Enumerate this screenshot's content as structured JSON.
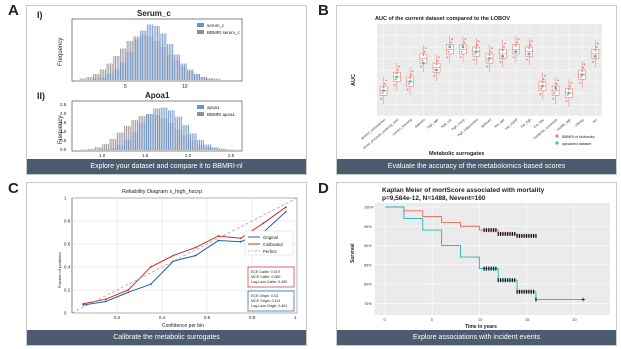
{
  "panels": {
    "A": {
      "letter": "A",
      "caption": "Explore your dataset and compare it to BBMRI-nl",
      "sub1": {
        "label": "I)",
        "title": "Serum_c",
        "ylabel": "Frequency",
        "legend": [
          "serum_c",
          "BBMRI serum_c"
        ],
        "xticks": [
          "5",
          "10"
        ]
      },
      "sub2": {
        "label": "II)",
        "title": "Apoa1",
        "ylabel": "Frequency",
        "legend": [
          "apoa1",
          "BBMRI apoa1"
        ],
        "yticks": [
          "2.5",
          "2.0",
          "1.5",
          "1.0",
          "0.5",
          "0.0"
        ],
        "xticks": [
          "1.0",
          "1.5",
          "2.0",
          "2.5"
        ]
      },
      "colors": {
        "dataset": "#6f93c8",
        "bbmri": "#8f8f8f"
      }
    },
    "B": {
      "letter": "B",
      "caption": "Evaluate the accuracy of the metabolomics-based scores",
      "title": "AUC of the current dataset compared to the LOBOV",
      "ylabel": "AUC",
      "xlabel": "Metabolic surrogates",
      "legend": [
        "BBMRI-nl biobanks",
        "uploaded dataset"
      ],
      "categories": [
        "alcohol_consumption",
        "blood_pressure_lowering_med",
        "current_smoking",
        "diabetes",
        "high_age",
        "high_crp",
        "high_hscrp",
        "high_triglycerides",
        "lipidmed",
        "low_age",
        "low_eGFR",
        "low_hgb",
        "low_wbc",
        "metabolic_syndrome",
        "middle_age",
        "obesity",
        "sex"
      ],
      "colors": {
        "bbmri": "#f07b72",
        "uploaded": "#3fc0c4"
      }
    },
    "C": {
      "letter": "C",
      "caption": "Calibrate the metabolic surrogates",
      "title": "Reliability Diagram s_high_hscrp",
      "ylabel": "Fraction of positives",
      "xlabel": "Confidence per bin",
      "legend": [
        "Original",
        "Calibrated",
        "Perfect"
      ],
      "xticks": [
        "0.2",
        "0.4",
        "0.6",
        "0.8",
        "1"
      ],
      "yticks": [
        "1",
        "0.8",
        "0.6",
        "0.4",
        "0.2",
        "0"
      ],
      "box_red": [
        "ECE Calibr: 0.019",
        "MCE Calibr: 0.080",
        "Log-Loss Calibr: 0.459"
      ],
      "box_blue": [
        "ECE Origin: 0.03",
        "MCE Origin: 0.114",
        "Log-Loss Origin: 0.461"
      ],
      "colors": {
        "original": "#1f5fa8",
        "calibrated": "#d22b2b",
        "perfect": "#999999"
      }
    },
    "D": {
      "letter": "D",
      "caption": "Explore associations with incident events",
      "title": "Kaplan Meier of mortScore associated with mortality",
      "subtitle": "p=9,584e-12, N=1488, Nevent=160",
      "ylabel": "Survival",
      "xlabel": "Time in years",
      "yticks": [
        "100%",
        "95%",
        "90%",
        "85%",
        "80%",
        "75%"
      ],
      "xticks": [
        "0",
        "5",
        "10",
        "15",
        "20"
      ],
      "colors": {
        "high": "#e86b5f",
        "low": "#22b5b5",
        "censor": "#111111"
      }
    }
  },
  "chart_data": [
    {
      "type": "bar",
      "title": "Serum_c",
      "ylabel": "Frequency",
      "series": [
        {
          "name": "serum_c",
          "values": [
            0.0,
            0.0,
            0.01,
            0.02,
            0.04,
            0.07,
            0.12,
            0.19,
            0.27,
            0.33,
            0.37,
            0.36,
            0.31,
            0.24,
            0.17,
            0.11,
            0.07,
            0.04,
            0.02,
            0.01,
            0.0,
            0.0,
            0.0,
            0.0
          ]
        },
        {
          "name": "BBMRI serum_c",
          "values": [
            0.01,
            0.02,
            0.04,
            0.07,
            0.11,
            0.16,
            0.21,
            0.26,
            0.29,
            0.3,
            0.29,
            0.26,
            0.22,
            0.17,
            0.13,
            0.09,
            0.06,
            0.04,
            0.02,
            0.01,
            0.01,
            0.0,
            0.0,
            0.0
          ]
        }
      ],
      "x": [
        2.0,
        2.5,
        3.0,
        3.5,
        4.0,
        4.5,
        5.0,
        5.5,
        6.0,
        6.5,
        7.0,
        7.5,
        8.0,
        8.5,
        9.0,
        9.5,
        10.0,
        10.5,
        11.0,
        11.5,
        12.0,
        12.5,
        13.0,
        13.5
      ]
    },
    {
      "type": "bar",
      "title": "Apoa1",
      "ylabel": "Frequency",
      "series": [
        {
          "name": "apoa1",
          "values": [
            0.0,
            0.0,
            0.02,
            0.05,
            0.12,
            0.28,
            0.55,
            0.95,
            1.45,
            1.95,
            2.25,
            2.3,
            2.15,
            1.8,
            1.35,
            0.9,
            0.55,
            0.3,
            0.15,
            0.07,
            0.03,
            0.01
          ]
        },
        {
          "name": "BBMRI apoa1",
          "values": [
            0.02,
            0.06,
            0.15,
            0.32,
            0.6,
            0.95,
            1.3,
            1.62,
            1.85,
            1.95,
            1.9,
            1.72,
            1.45,
            1.12,
            0.8,
            0.52,
            0.3,
            0.16,
            0.08,
            0.03,
            0.01,
            0.0
          ]
        }
      ],
      "x": [
        0.8,
        0.9,
        1.0,
        1.1,
        1.2,
        1.3,
        1.4,
        1.5,
        1.6,
        1.7,
        1.8,
        1.9,
        2.0,
        2.1,
        2.2,
        2.3,
        2.4,
        2.5,
        2.6,
        2.7,
        2.8,
        2.9
      ]
    },
    {
      "type": "scatter",
      "title": "AUC of the current dataset compared to the LOBOV",
      "ylabel": "AUC",
      "xlabel": "Metabolic surrogates",
      "categories": [
        "alcohol_consumption",
        "blood_pressure_lowering_med",
        "current_smoking",
        "diabetes",
        "high_age",
        "high_crp",
        "high_hscrp",
        "high_triglycerides",
        "lipidmed",
        "low_age",
        "low_eGFR",
        "low_hgb",
        "low_wbc",
        "metabolic_syndrome",
        "middle_age",
        "obesity",
        "sex"
      ],
      "series": [
        {
          "name": "BBMRI-nl biobanks",
          "medians": [
            0.66,
            0.72,
            0.7,
            0.8,
            0.76,
            0.84,
            0.84,
            0.83,
            0.8,
            0.82,
            0.84,
            0.83,
            0.68,
            0.66,
            0.65,
            0.73,
            0.82
          ]
        },
        {
          "name": "uploaded dataset",
          "values": [
            0.66,
            0.72,
            0.7,
            0.78,
            0.75,
            0.85,
            0.85,
            0.83,
            0.8,
            0.81,
            0.83,
            0.82,
            0.68,
            0.67,
            0.65,
            0.73,
            0.81
          ]
        }
      ]
    },
    {
      "type": "line",
      "title": "Reliability Diagram s_high_hscrp",
      "xlabel": "Confidence per bin",
      "ylabel": "Fraction of positives",
      "series": [
        {
          "name": "Original",
          "x": [
            0.05,
            0.15,
            0.25,
            0.35,
            0.45,
            0.55,
            0.65,
            0.75,
            0.85,
            0.95
          ],
          "values": [
            0.07,
            0.1,
            0.18,
            0.25,
            0.45,
            0.5,
            0.63,
            0.62,
            0.7,
            0.88
          ]
        },
        {
          "name": "Calibrated",
          "x": [
            0.05,
            0.15,
            0.25,
            0.35,
            0.45,
            0.55,
            0.65,
            0.75,
            0.85,
            0.95
          ],
          "values": [
            0.08,
            0.12,
            0.2,
            0.4,
            0.5,
            0.57,
            0.67,
            0.65,
            0.78,
            0.92
          ]
        },
        {
          "name": "Perfect",
          "x": [
            0,
            1
          ],
          "values": [
            0,
            1
          ]
        }
      ]
    },
    {
      "type": "line",
      "title": "Kaplan Meier of mortScore associated with mortality",
      "xlabel": "Time in years",
      "ylabel": "Survival",
      "series": [
        {
          "name": "",
          "x": [
            0,
            2,
            4,
            6,
            8,
            10,
            12,
            14,
            16
          ],
          "values": [
            1.0,
            0.99,
            0.975,
            0.96,
            0.95,
            0.94,
            0.93,
            0.925,
            0.925
          ]
        },
        {
          "name": "",
          "x": [
            0,
            2,
            4,
            6,
            8,
            10,
            12,
            14,
            16,
            21
          ],
          "values": [
            1.0,
            0.97,
            0.94,
            0.9,
            0.87,
            0.84,
            0.81,
            0.78,
            0.76,
            0.76
          ]
        }
      ]
    }
  ]
}
